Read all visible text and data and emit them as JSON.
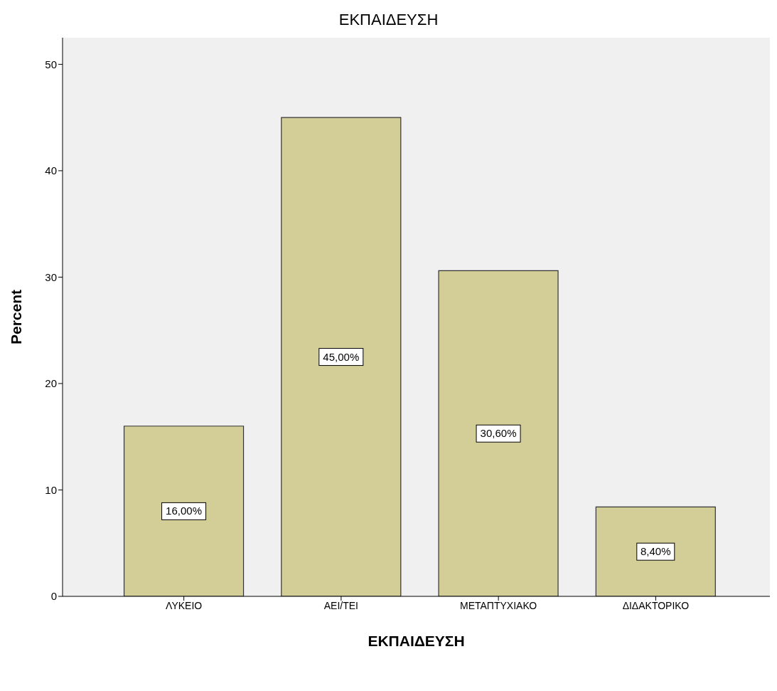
{
  "chart_data": {
    "type": "bar",
    "title": "ΕΚΠΑΙΔΕΥΣΗ",
    "xlabel": "ΕΚΠΑΙΔΕΥΣΗ",
    "ylabel": "Percent",
    "categories": [
      "ΛΥΚΕΙΟ",
      "ΑΕΙ/ΤΕΙ",
      "ΜΕΤΑΠΤΥΧΙΑΚΟ",
      "ΔΙΔΑΚΤΟΡΙΚΟ"
    ],
    "values": [
      16,
      45,
      30.6,
      8.4
    ],
    "value_labels": [
      "16,00%",
      "45,00%",
      "30,60%",
      "8,40%"
    ],
    "color": "#d3ce97",
    "ylim": [
      0,
      52.5
    ],
    "yticks": [
      0,
      10,
      20,
      30,
      40,
      50
    ]
  }
}
